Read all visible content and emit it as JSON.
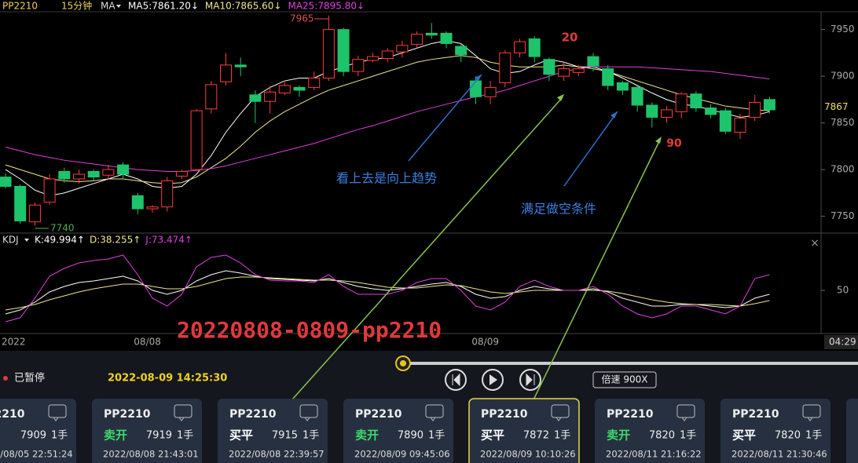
{
  "chart_data": [
    {
      "type": "candlestick",
      "symbol": "PP2210",
      "period": "15分钟",
      "indicator": "MA",
      "categories": [
        "2022",
        null,
        null,
        null,
        null,
        null,
        null,
        null,
        null,
        "08/08",
        null,
        null,
        null,
        null,
        null,
        null,
        null,
        null,
        null,
        null,
        null,
        null,
        null,
        null,
        null,
        null,
        null,
        null,
        null,
        null,
        null,
        null,
        "08/09",
        null,
        null,
        null,
        null,
        null,
        null,
        null,
        null,
        null,
        null,
        null,
        null,
        null,
        null,
        null,
        null,
        null,
        null,
        null,
        null
      ],
      "open": [
        7792,
        7782,
        7744,
        7765,
        7798,
        7790,
        7798,
        7794,
        7805,
        7772,
        7758,
        7760,
        7793,
        7800,
        7865,
        7894,
        7912,
        7880,
        7873,
        7882,
        7888,
        7888,
        7898,
        7950,
        7905,
        7917,
        7919,
        7926,
        7934,
        7946,
        7946,
        7932,
        7895,
        7878,
        7893,
        7925,
        7940,
        7918,
        7900,
        7904,
        7921,
        7908,
        7893,
        7888,
        7869,
        7856,
        7862,
        7881,
        7866,
        7863,
        7840,
        7856,
        7875
      ],
      "high": [
        7796,
        7784,
        7765,
        7795,
        7802,
        7800,
        7800,
        7805,
        7808,
        7775,
        7762,
        7792,
        7800,
        7865,
        7895,
        7925,
        7920,
        7885,
        7890,
        7895,
        7890,
        7905,
        7965,
        7952,
        7922,
        7925,
        7930,
        7938,
        7948,
        7957,
        7948,
        7935,
        7900,
        7895,
        7928,
        7940,
        7943,
        7920,
        7915,
        7912,
        7925,
        7912,
        7895,
        7890,
        7872,
        7868,
        7883,
        7884,
        7870,
        7866,
        7860,
        7880,
        7878
      ],
      "low": [
        7780,
        7742,
        7740,
        7762,
        7786,
        7785,
        7788,
        7790,
        7790,
        7752,
        7754,
        7755,
        7790,
        7798,
        7860,
        7890,
        7900,
        7850,
        7860,
        7880,
        7878,
        7885,
        7895,
        7900,
        7900,
        7915,
        7915,
        7920,
        7930,
        7940,
        7930,
        7915,
        7870,
        7870,
        7888,
        7920,
        7915,
        7895,
        7895,
        7900,
        7905,
        7885,
        7880,
        7862,
        7845,
        7850,
        7855,
        7862,
        7855,
        7838,
        7833,
        7852,
        7860
      ],
      "close": [
        7782,
        7745,
        7762,
        7790,
        7790,
        7795,
        7792,
        7800,
        7795,
        7758,
        7760,
        7788,
        7798,
        7863,
        7891,
        7912,
        7910,
        7873,
        7883,
        7890,
        7885,
        7898,
        7950,
        7905,
        7918,
        7921,
        7927,
        7933,
        7945,
        7944,
        7935,
        7923,
        7878,
        7888,
        7925,
        7937,
        7921,
        7902,
        7908,
        7908,
        7911,
        7890,
        7885,
        7869,
        7856,
        7864,
        7881,
        7866,
        7859,
        7841,
        7855,
        7872,
        7864
      ],
      "up_color": "#ff3b3b",
      "down_color": "#1ec46b",
      "ma_lines": [
        {
          "name": "MA5:7861.20↓",
          "color": "#ffffff",
          "values": [
            7800,
            7790,
            7778,
            7772,
            7775,
            7780,
            7785,
            7790,
            7795,
            7790,
            7782,
            7780,
            7782,
            7795,
            7815,
            7840,
            7860,
            7878,
            7888,
            7895,
            7898,
            7898,
            7905,
            7910,
            7915,
            7918,
            7920,
            7925,
            7930,
            7935,
            7938,
            7935,
            7922,
            7908,
            7903,
            7905,
            7912,
            7918,
            7915,
            7910,
            7910,
            7905,
            7898,
            7890,
            7882,
            7875,
            7870,
            7868,
            7864,
            7860,
            7856,
            7858,
            7862
          ]
        },
        {
          "name": "MA10:7865.60↓",
          "color": "#f0e68c",
          "values": [
            7805,
            7800,
            7795,
            7790,
            7788,
            7787,
            7788,
            7790,
            7790,
            7788,
            7786,
            7785,
            7786,
            7792,
            7802,
            7812,
            7825,
            7840,
            7852,
            7862,
            7870,
            7878,
            7885,
            7890,
            7895,
            7900,
            7905,
            7910,
            7915,
            7918,
            7920,
            7922,
            7920,
            7915,
            7912,
            7910,
            7910,
            7910,
            7912,
            7910,
            7908,
            7905,
            7900,
            7895,
            7890,
            7885,
            7880,
            7876,
            7872,
            7868,
            7866,
            7864,
            7863
          ]
        },
        {
          "name": "MA25:7895.80↓",
          "color": "#e040e0",
          "values": [
            7824,
            7820,
            7816,
            7813,
            7810,
            7808,
            7806,
            7804,
            7802,
            7800,
            7799,
            7798,
            7798,
            7799,
            7801,
            7804,
            7808,
            7812,
            7816,
            7820,
            7824,
            7828,
            7833,
            7838,
            7843,
            7847,
            7852,
            7857,
            7862,
            7866,
            7870,
            7874,
            7878,
            7881,
            7885,
            7890,
            7895,
            7900,
            7905,
            7908,
            7910,
            7910,
            7910,
            7910,
            7909,
            7908,
            7907,
            7906,
            7905,
            7903,
            7901,
            7899,
            7897
          ]
        }
      ],
      "ylim": [
        7732,
        7969
      ],
      "yticks": [
        7750,
        7800,
        7850,
        7900,
        7950
      ],
      "current_price": 7867,
      "high_label": 7965,
      "low_label": 7740,
      "annotations": [
        "20",
        "90",
        "看上去是向上趋势",
        "满足做空条件",
        "20220808-0809-pp2210"
      ],
      "cursor_time": "04:29"
    },
    {
      "type": "line",
      "indicator": "KDJ",
      "series": [
        {
          "name": "K:49.994↑",
          "color": "#ffffff",
          "values": [
            20,
            25,
            35,
            48,
            55,
            60,
            62,
            65,
            68,
            62,
            50,
            45,
            50,
            62,
            70,
            75,
            72,
            68,
            65,
            64,
            63,
            62,
            65,
            60,
            55,
            52,
            50,
            52,
            55,
            58,
            60,
            55,
            45,
            40,
            42,
            50,
            55,
            52,
            50,
            50,
            52,
            48,
            40,
            35,
            30,
            30,
            32,
            32,
            30,
            28,
            30,
            40,
            45
          ]
        },
        {
          "name": "D:38.255↑",
          "color": "#f0e68c",
          "values": [
            25,
            28,
            32,
            38,
            43,
            48,
            52,
            55,
            58,
            58,
            55,
            52,
            52,
            55,
            60,
            65,
            67,
            67,
            66,
            65,
            64,
            63,
            63,
            62,
            60,
            57,
            54,
            53,
            53,
            55,
            57,
            56,
            52,
            48,
            46,
            48,
            50,
            50,
            50,
            50,
            50,
            49,
            46,
            42,
            38,
            35,
            33,
            32,
            32,
            31,
            30,
            33,
            37
          ]
        },
        {
          "name": "J:73.474↑",
          "color": "#e040e0",
          "values": [
            10,
            15,
            40,
            68,
            78,
            85,
            88,
            90,
            95,
            70,
            40,
            30,
            45,
            80,
            92,
            95,
            85,
            70,
            63,
            62,
            62,
            60,
            70,
            55,
            45,
            45,
            45,
            50,
            60,
            65,
            65,
            50,
            30,
            25,
            35,
            55,
            63,
            55,
            50,
            50,
            55,
            45,
            30,
            20,
            15,
            20,
            30,
            30,
            25,
            20,
            30,
            65,
            70
          ]
        }
      ],
      "ylim": [
        -5,
        120
      ],
      "yticks": [
        50
      ]
    }
  ],
  "playback": {
    "status": "已暂停",
    "datetime": "2022-08-09 14:25:30",
    "speed": "倍速 900X"
  },
  "trades": [
    {
      "symbol": "PP2210",
      "price": 7909,
      "qty": "1手",
      "time": "2022/08/05 22:51:24"
    },
    {
      "symbol": "PP2210",
      "action": "卖开",
      "price": 7919,
      "qty": "1手",
      "time": "2022/08/08 21:43:01"
    },
    {
      "symbol": "PP2210",
      "action": "买平",
      "price": 7915,
      "qty": "1手",
      "time": "2022/08/08 22:39:57"
    },
    {
      "symbol": "PP2210",
      "action": "卖开",
      "price": 7890,
      "qty": "1手",
      "time": "2022/08/09 09:45:06"
    },
    {
      "symbol": "PP2210",
      "action": "买平",
      "price": 7872,
      "qty": "1手",
      "time": "2022/08/09 10:10:26"
    },
    {
      "symbol": "PP2210",
      "action": "卖开",
      "price": 7820,
      "qty": "1手",
      "time": "2022/08/11 21:16:22"
    },
    {
      "symbol": "PP2210",
      "action": "买平",
      "price": 7820,
      "qty": "1手",
      "time": "2022/08/11 21:30:46"
    }
  ]
}
